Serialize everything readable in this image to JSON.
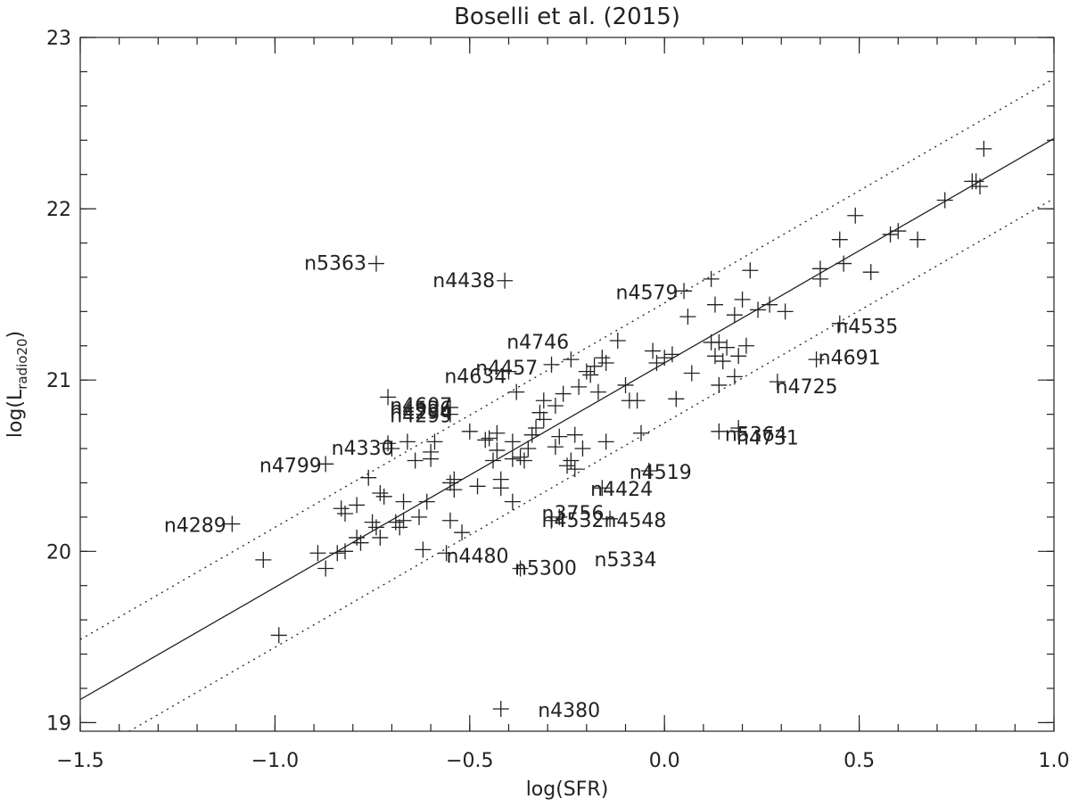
{
  "chart_data": {
    "type": "scatter",
    "title": "Boselli et al. (2015)",
    "xlabel": "log(SFR)",
    "ylabel": {
      "prefix": "log(L",
      "subscript": "radio20",
      "suffix": ")"
    },
    "xlim": [
      -1.5,
      1.0
    ],
    "ylim": [
      18.95,
      23.0
    ],
    "x_ticks": [
      {
        "value": -1.5,
        "label": "−1.5"
      },
      {
        "value": -1.0,
        "label": "−1.0"
      },
      {
        "value": -0.5,
        "label": "−0.5"
      },
      {
        "value": 0.0,
        "label": "0.0"
      },
      {
        "value": 0.5,
        "label": "0.5"
      },
      {
        "value": 1.0,
        "label": "1.0"
      }
    ],
    "y_ticks": [
      {
        "value": 19,
        "label": "19"
      },
      {
        "value": 20,
        "label": "20"
      },
      {
        "value": 21,
        "label": "21"
      },
      {
        "value": 22,
        "label": "22"
      },
      {
        "value": 23,
        "label": "23"
      }
    ],
    "grid": false,
    "fit_line": {
      "slope": 1.31,
      "intercept": 21.1,
      "style": "solid"
    },
    "bound_lines": [
      {
        "offset": 0.35,
        "style": "dotted"
      },
      {
        "offset": -0.35,
        "style": "dotted"
      }
    ],
    "marker": "plus",
    "points": [
      [
        -1.11,
        20.16
      ],
      [
        -1.03,
        19.95
      ],
      [
        -0.99,
        19.51
      ],
      [
        -0.89,
        19.99
      ],
      [
        -0.87,
        19.9
      ],
      [
        -0.87,
        20.51
      ],
      [
        -0.84,
        19.99
      ],
      [
        -0.83,
        20.25
      ],
      [
        -0.82,
        20.0
      ],
      [
        -0.82,
        20.22
      ],
      [
        -0.79,
        20.08
      ],
      [
        -0.79,
        20.27
      ],
      [
        -0.78,
        20.05
      ],
      [
        -0.76,
        20.43
      ],
      [
        -0.75,
        20.17
      ],
      [
        -0.74,
        20.14
      ],
      [
        -0.74,
        21.68
      ],
      [
        -0.73,
        20.34
      ],
      [
        -0.73,
        20.08
      ],
      [
        -0.72,
        20.32
      ],
      [
        -0.71,
        20.9
      ],
      [
        -0.71,
        20.63
      ],
      [
        -0.7,
        20.6
      ],
      [
        -0.69,
        20.17
      ],
      [
        -0.68,
        20.14
      ],
      [
        -0.67,
        20.18
      ],
      [
        -0.67,
        20.29
      ],
      [
        -0.66,
        20.64
      ],
      [
        -0.64,
        20.53
      ],
      [
        -0.63,
        20.2
      ],
      [
        -0.62,
        20.01
      ],
      [
        -0.61,
        20.29
      ],
      [
        -0.6,
        20.58
      ],
      [
        -0.6,
        20.54
      ],
      [
        -0.59,
        20.64
      ],
      [
        -0.56,
        19.99
      ],
      [
        -0.55,
        20.18
      ],
      [
        -0.55,
        20.4
      ],
      [
        -0.54,
        20.36
      ],
      [
        -0.54,
        20.42
      ],
      [
        -0.55,
        20.84
      ],
      [
        -0.55,
        20.8
      ],
      [
        -0.52,
        20.11
      ],
      [
        -0.5,
        20.7
      ],
      [
        -0.48,
        20.38
      ],
      [
        -0.46,
        20.65
      ],
      [
        -0.45,
        20.66
      ],
      [
        -0.44,
        20.53
      ],
      [
        -0.43,
        20.59
      ],
      [
        -0.43,
        20.69
      ],
      [
        -0.42,
        20.42
      ],
      [
        -0.42,
        20.37
      ],
      [
        -0.41,
        21.58
      ],
      [
        -0.4,
        21.05
      ],
      [
        -0.42,
        19.08
      ],
      [
        -0.39,
        20.54
      ],
      [
        -0.39,
        20.64
      ],
      [
        -0.39,
        20.29
      ],
      [
        -0.38,
        20.93
      ],
      [
        -0.37,
        19.9
      ],
      [
        -0.37,
        20.55
      ],
      [
        -0.36,
        20.53
      ],
      [
        -0.35,
        20.6
      ],
      [
        -0.34,
        20.68
      ],
      [
        -0.33,
        20.72
      ],
      [
        -0.32,
        20.81
      ],
      [
        -0.31,
        20.88
      ],
      [
        -0.31,
        20.77
      ],
      [
        -0.29,
        20.18
      ],
      [
        -0.29,
        21.09
      ],
      [
        -0.28,
        20.61
      ],
      [
        -0.28,
        20.85
      ],
      [
        -0.27,
        20.2
      ],
      [
        -0.27,
        20.67
      ],
      [
        -0.26,
        20.92
      ],
      [
        -0.25,
        20.5
      ],
      [
        -0.24,
        20.53
      ],
      [
        -0.24,
        21.12
      ],
      [
        -0.23,
        20.68
      ],
      [
        -0.23,
        20.48
      ],
      [
        -0.22,
        20.96
      ],
      [
        -0.21,
        20.6
      ],
      [
        -0.2,
        21.05
      ],
      [
        -0.19,
        21.03
      ],
      [
        -0.18,
        21.08
      ],
      [
        -0.17,
        20.93
      ],
      [
        -0.16,
        20.37
      ],
      [
        -0.16,
        21.13
      ],
      [
        -0.15,
        21.1
      ],
      [
        -0.15,
        20.64
      ],
      [
        -0.14,
        20.19
      ],
      [
        -0.12,
        21.23
      ],
      [
        -0.1,
        20.97
      ],
      [
        -0.09,
        20.88
      ],
      [
        -0.07,
        20.88
      ],
      [
        -0.06,
        20.69
      ],
      [
        -0.04,
        20.47
      ],
      [
        -0.03,
        21.17
      ],
      [
        -0.02,
        21.1
      ],
      [
        0.0,
        21.13
      ],
      [
        0.02,
        21.15
      ],
      [
        0.03,
        20.89
      ],
      [
        0.05,
        21.52
      ],
      [
        0.06,
        21.37
      ],
      [
        0.07,
        21.04
      ],
      [
        0.12,
        21.22
      ],
      [
        0.12,
        21.59
      ],
      [
        0.13,
        21.44
      ],
      [
        0.13,
        21.14
      ],
      [
        0.14,
        21.22
      ],
      [
        0.14,
        20.97
      ],
      [
        0.15,
        21.11
      ],
      [
        0.16,
        21.19
      ],
      [
        0.18,
        21.38
      ],
      [
        0.18,
        21.02
      ],
      [
        0.19,
        21.14
      ],
      [
        0.19,
        20.7
      ],
      [
        0.2,
        21.47
      ],
      [
        0.21,
        21.2
      ],
      [
        0.22,
        21.64
      ],
      [
        0.24,
        21.41
      ],
      [
        0.27,
        21.44
      ],
      [
        0.29,
        20.99
      ],
      [
        0.31,
        21.4
      ],
      [
        0.39,
        21.12
      ],
      [
        0.4,
        21.65
      ],
      [
        0.4,
        21.59
      ],
      [
        0.45,
        21.33
      ],
      [
        0.45,
        21.82
      ],
      [
        0.46,
        21.68
      ],
      [
        0.49,
        21.96
      ],
      [
        0.53,
        21.63
      ],
      [
        0.58,
        21.85
      ],
      [
        0.6,
        21.87
      ],
      [
        0.65,
        21.82
      ],
      [
        0.72,
        22.05
      ],
      [
        0.79,
        22.16
      ],
      [
        0.8,
        22.16
      ],
      [
        0.81,
        22.13
      ],
      [
        0.82,
        22.35
      ],
      [
        0.14,
        20.7
      ],
      [
        0.19,
        20.72
      ]
    ],
    "annotations": [
      {
        "text": "n5363",
        "x": -0.765,
        "y": 21.685
      },
      {
        "text": "n4438",
        "x": -0.435,
        "y": 21.585
      },
      {
        "text": "n4579",
        "x": 0.035,
        "y": 21.515
      },
      {
        "text": "n4746",
        "x": -0.245,
        "y": 21.225
      },
      {
        "text": "n4457",
        "x": -0.325,
        "y": 21.075
      },
      {
        "text": "n4634",
        "x": -0.405,
        "y": 21.025
      },
      {
        "text": "n4535",
        "x": 0.6,
        "y": 21.315
      },
      {
        "text": "n4691",
        "x": 0.555,
        "y": 21.135
      },
      {
        "text": "n4725",
        "x": 0.445,
        "y": 20.965
      },
      {
        "text": "n4607",
        "x": -0.545,
        "y": 20.855
      },
      {
        "text": "n4536",
        "x": -0.545,
        "y": 20.835
      },
      {
        "text": "n4294",
        "x": -0.545,
        "y": 20.815
      },
      {
        "text": "n4299",
        "x": -0.545,
        "y": 20.795
      },
      {
        "text": "n4330",
        "x": -0.695,
        "y": 20.605
      },
      {
        "text": "n4799",
        "x": -0.88,
        "y": 20.505
      },
      {
        "text": "n5364",
        "x": 0.315,
        "y": 20.685
      },
      {
        "text": "n4731",
        "x": 0.345,
        "y": 20.665
      },
      {
        "text": "n4519",
        "x": 0.07,
        "y": 20.465
      },
      {
        "text": "n4424",
        "x": -0.03,
        "y": 20.365
      },
      {
        "text": "n3756",
        "x": -0.155,
        "y": 20.225
      },
      {
        "text": "n4532",
        "x": -0.155,
        "y": 20.185
      },
      {
        "text": "n4548",
        "x": 0.005,
        "y": 20.185
      },
      {
        "text": "n4289",
        "x": -1.125,
        "y": 20.155
      },
      {
        "text": "n4480",
        "x": -0.4,
        "y": 19.975
      },
      {
        "text": "n5334",
        "x": -0.02,
        "y": 19.955
      },
      {
        "text": "n5300",
        "x": -0.225,
        "y": 19.905
      },
      {
        "text": "n4380",
        "x": -0.165,
        "y": 19.075
      }
    ]
  }
}
